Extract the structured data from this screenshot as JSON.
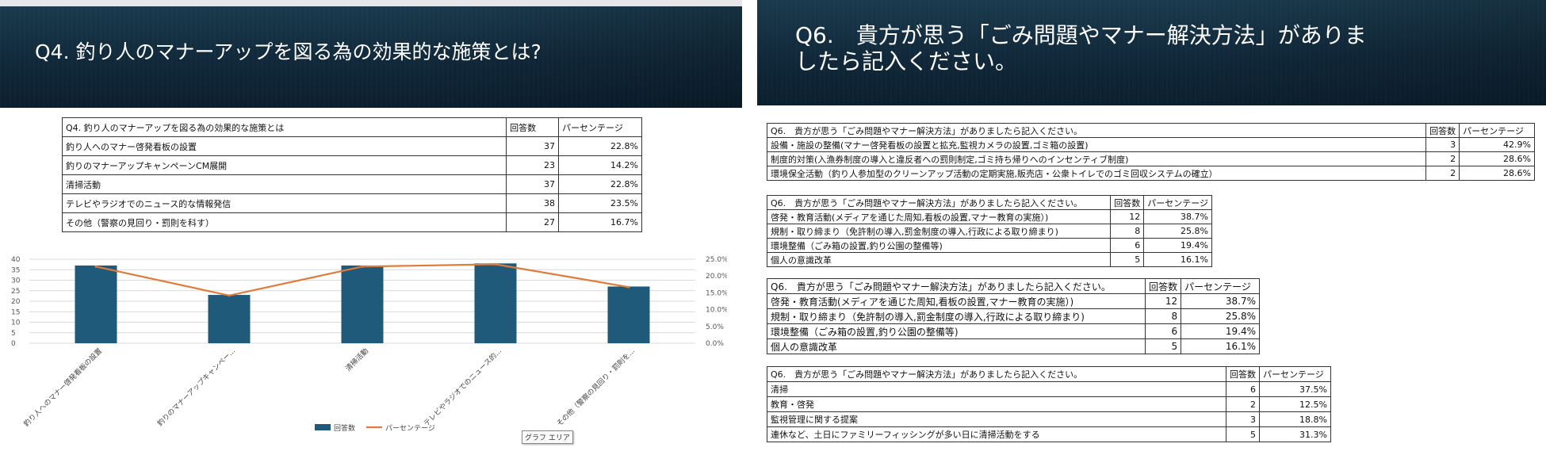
{
  "left_slide": {
    "title": "Q4.  釣り人のマナーアップを図る為の効果的な施策とは?",
    "table": {
      "header": [
        "Q4.  釣り人のマナーアップを図る為の効果的な施策とは",
        "回答数",
        "パーセンテージ"
      ],
      "rows": [
        [
          "釣り人へのマナー啓発看板の設置",
          "37",
          "22.8%"
        ],
        [
          "釣りのマナーアップキャンペーンCM展開",
          "23",
          "14.2%"
        ],
        [
          "清掃活動",
          "37",
          "22.8%"
        ],
        [
          "テレビやラジオでのニュース的な情報発信",
          "38",
          "23.5%"
        ],
        [
          "その他（警察の見回り・罰則を科す）",
          "27",
          "16.7%"
        ]
      ]
    },
    "chart_data": {
      "type": "bar",
      "categories": [
        "釣り人へのマナー啓発看板の設置",
        "釣りのマナーアップキャンペー...",
        "清掃活動",
        "テレビやラジオでのニュース的...",
        "その他（警察の見回り・罰則を..."
      ],
      "series": [
        {
          "name": "回答数",
          "type": "bar",
          "axis": "left",
          "values": [
            37,
            23,
            37,
            38,
            27
          ],
          "color": "#1f5a7a"
        },
        {
          "name": "パーセンテージ",
          "type": "line",
          "axis": "right",
          "values": [
            22.8,
            14.2,
            22.8,
            23.5,
            16.7
          ],
          "color": "#e07b39"
        }
      ],
      "y_left": {
        "min": 0,
        "max": 40,
        "ticks": [
          "0",
          "5",
          "10",
          "15",
          "20",
          "25",
          "30",
          "35",
          "40"
        ]
      },
      "y_right": {
        "min": 0,
        "max": 25,
        "ticks": [
          "0.0%",
          "5.0%",
          "10.0%",
          "15.0%",
          "20.0%",
          "25.0%"
        ]
      },
      "grid": true,
      "legend": "bottom"
    },
    "tooltip": "グラフ エリア"
  },
  "right_slide": {
    "title_line1": "Q6.　貴方が思う「ごみ問題やマナー解決方法」がありま",
    "title_line2": "したら記入ください。",
    "tables": [
      {
        "header": [
          "Q6.　貴方が思う「ごみ問題やマナー解決方法」がありましたら記入ください。",
          "回答数",
          "パーセンテージ"
        ],
        "rows": [
          [
            "設備・施設の整備(マナー啓発看板の設置と拡充,監視カメラの設置,ゴミ箱の設置)",
            "3",
            "42.9%"
          ],
          [
            "制度的対策(入漁券制度の導入と違反者への罰則制定,ゴミ持ち帰りへのインセンティブ制度)",
            "2",
            "28.6%"
          ],
          [
            "環境保全活動（釣り人参加型のクリーンアップ活動の定期実施,販売店・公衆トイレでのゴミ回収システムの確立）",
            "2",
            "28.6%"
          ]
        ]
      },
      {
        "header": [
          "Q6.　貴方が思う「ごみ問題やマナー解決方法」がありましたら記入ください。",
          "回答数",
          "パーセンテージ"
        ],
        "rows": [
          [
            "啓発・教育活動(メディアを通じた周知,看板の設置,マナー教育の実施）)",
            "12",
            "38.7%"
          ],
          [
            "規制・取り締まり（免許制の導入,罰金制度の導入,行政による取り締まり)",
            "8",
            "25.8%"
          ],
          [
            "環境整備（ごみ箱の設置,釣り公園の整備等)",
            "6",
            "19.4%"
          ],
          [
            "個人の意識改革",
            "5",
            "16.1%"
          ]
        ]
      },
      {
        "header": [
          "Q6.　貴方が思う「ごみ問題やマナー解決方法」がありましたら記入ください。",
          "回答数",
          "パーセンテージ"
        ],
        "rows": [
          [
            "啓発・教育活動(メディアを通じた周知,看板の設置,マナー教育の実施）)",
            "12",
            "38.7%"
          ],
          [
            "規制・取り締まり（免許制の導入,罰金制度の導入,行政による取り締まり)",
            "8",
            "25.8%"
          ],
          [
            "環境整備（ごみ箱の設置,釣り公園の整備等)",
            "6",
            "19.4%"
          ],
          [
            "個人の意識改革",
            "5",
            "16.1%"
          ]
        ]
      },
      {
        "header": [
          "Q6.　貴方が思う「ごみ問題やマナー解決方法」がありましたら記入ください。",
          "回答数",
          "パーセンテージ"
        ],
        "rows": [
          [
            "清掃",
            "6",
            "37.5%"
          ],
          [
            "教育・啓発",
            "2",
            "12.5%"
          ],
          [
            "監視管理に関する提案",
            "3",
            "18.8%"
          ],
          [
            "連休など、土日にファミリーフィッシングが多い日に清掃活動をする",
            "5",
            "31.3%"
          ]
        ]
      }
    ]
  }
}
